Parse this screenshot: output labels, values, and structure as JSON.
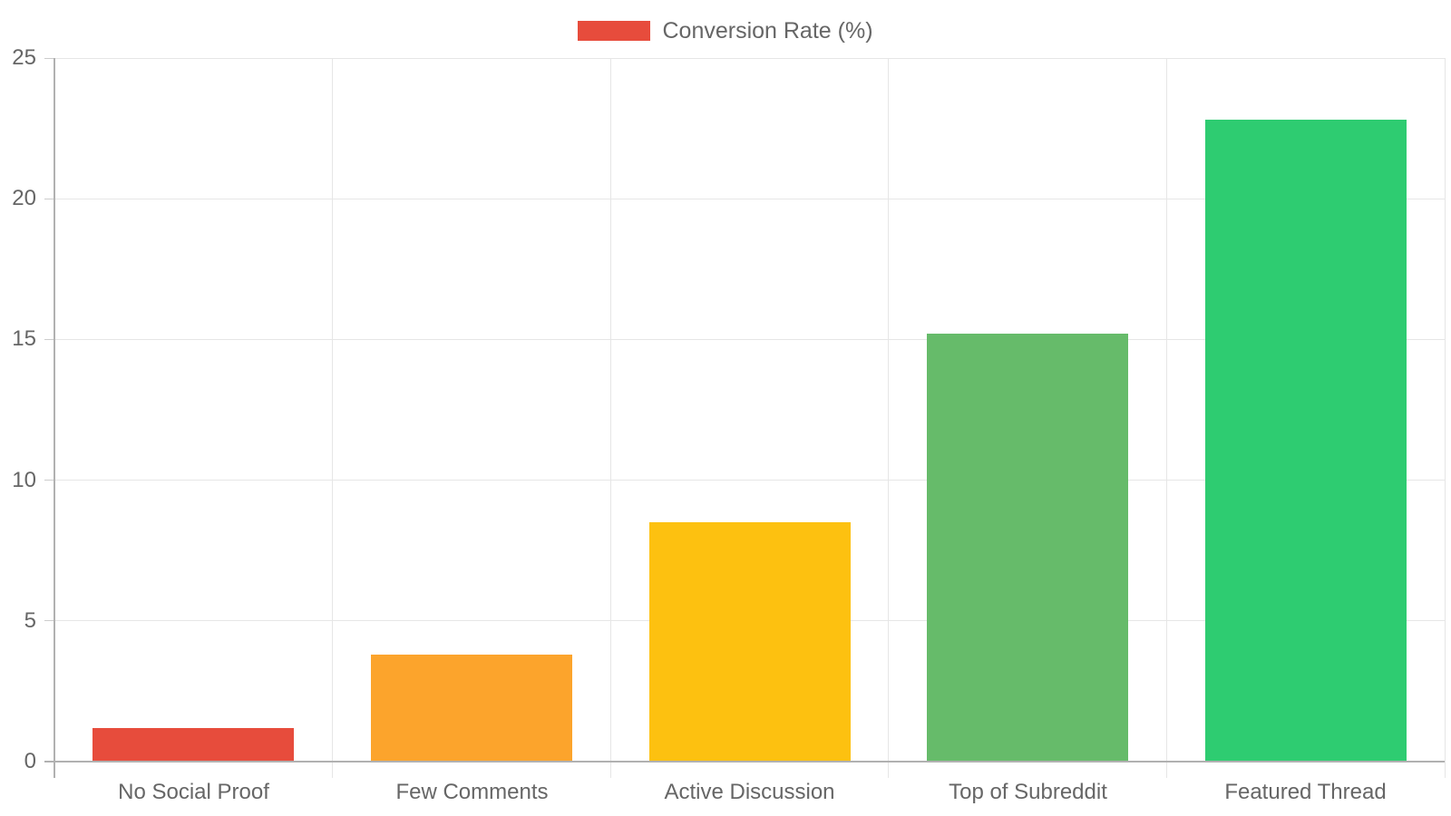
{
  "legend": {
    "label": "Conversion Rate (%)",
    "color": "#e74c3c"
  },
  "chart_data": {
    "type": "bar",
    "title": "",
    "xlabel": "",
    "ylabel": "",
    "categories": [
      "No Social Proof",
      "Few Comments",
      "Active Discussion",
      "Top of Subreddit",
      "Featured Thread"
    ],
    "series": [
      {
        "name": "Conversion Rate (%)",
        "values": [
          1.2,
          3.8,
          8.5,
          15.2,
          22.8
        ]
      }
    ],
    "bar_colors": [
      "#e74c3c",
      "#fca42c",
      "#fdc110",
      "#66bb6a",
      "#2ecc71"
    ],
    "ylim": [
      0,
      25
    ],
    "yticks": [
      0,
      5,
      10,
      15,
      20,
      25
    ],
    "grid": true,
    "legend_position": "top-center",
    "text_color": "#666666",
    "grid_color": "#e6e6e6",
    "axis_color": "#b1b1b1"
  }
}
